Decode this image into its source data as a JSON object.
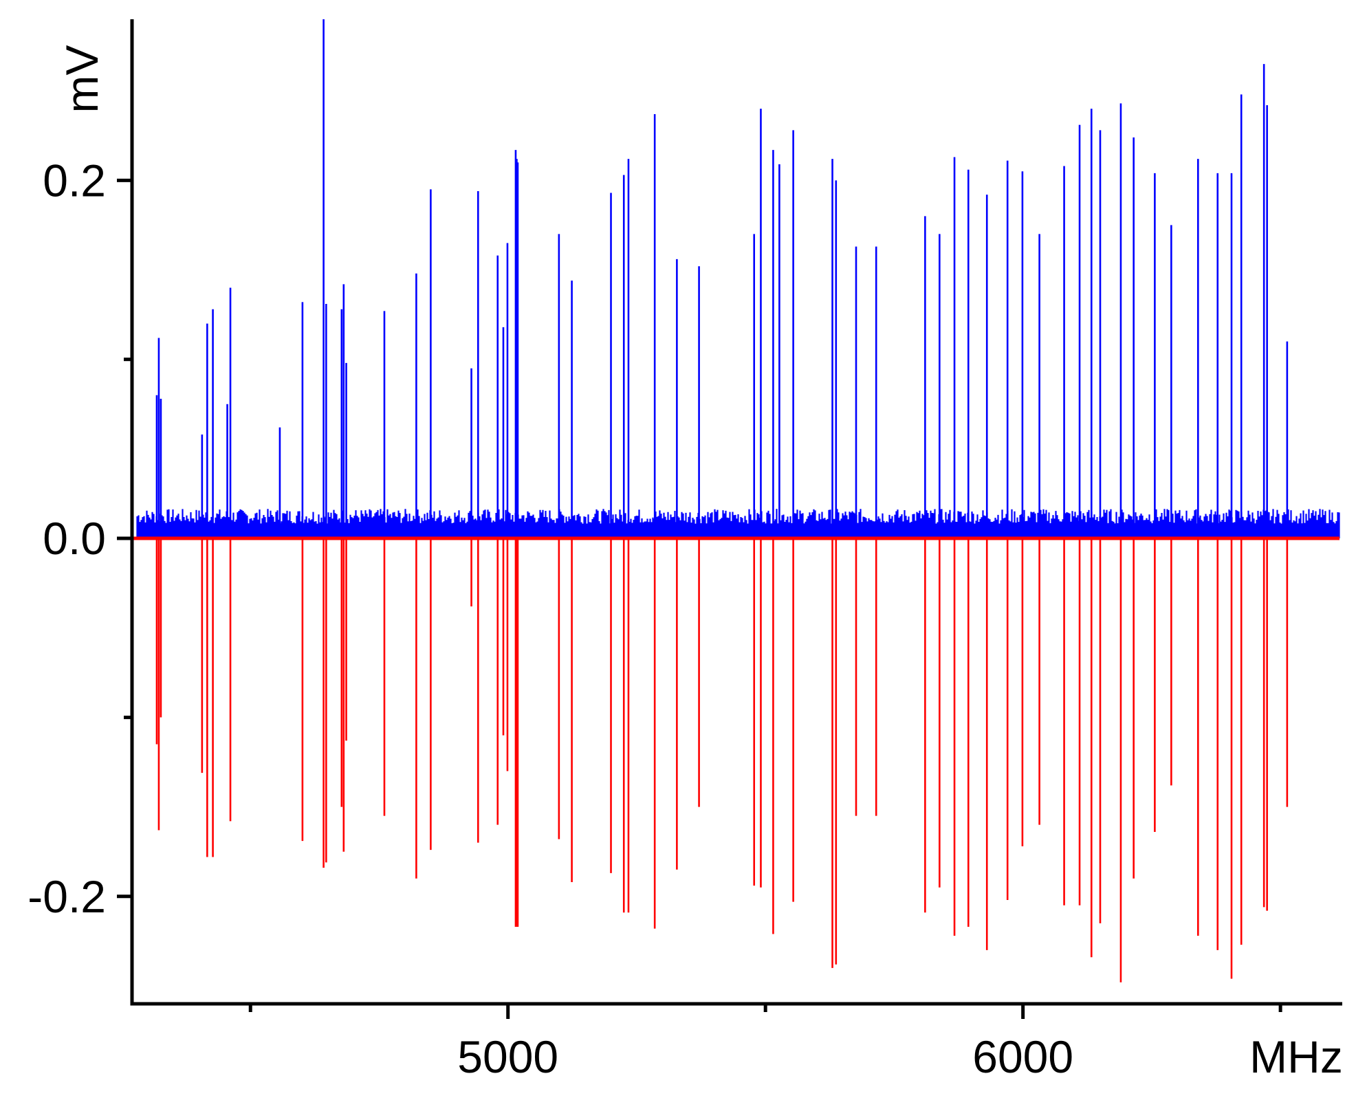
{
  "chart_data": {
    "type": "line",
    "xlabel": "MHz",
    "ylabel": "mV",
    "xlim": [
      4270,
      6620
    ],
    "ylim": [
      -0.26,
      0.29
    ],
    "x_ticks_major": [
      5000,
      6000
    ],
    "x_ticks_minor": [
      4500,
      5500,
      6500
    ],
    "y_ticks_major": [
      -0.2,
      0.0,
      0.2
    ],
    "y_ticks_minor": [
      -0.1,
      0.1
    ],
    "y_tick_labels": [
      "-0.2",
      "0.0",
      "0.2"
    ],
    "x_tick_labels": [
      "5000",
      "6000"
    ],
    "grid": false,
    "noise_floor_mV": 0.015,
    "series": [
      {
        "color": "#0000ff",
        "orientation": "up",
        "peaks": [
          [
            4318,
            0.08
          ],
          [
            4322,
            0.112
          ],
          [
            4326,
            0.078
          ],
          [
            4406,
            0.058
          ],
          [
            4416,
            0.12
          ],
          [
            4427,
            0.128
          ],
          [
            4455,
            0.075
          ],
          [
            4461,
            0.14
          ],
          [
            4557,
            0.062
          ],
          [
            4601,
            0.132
          ],
          [
            4642,
            0.29
          ],
          [
            4647,
            0.131
          ],
          [
            4677,
            0.128
          ],
          [
            4681,
            0.142
          ],
          [
            4686,
            0.098
          ],
          [
            4760,
            0.127
          ],
          [
            4822,
            0.148
          ],
          [
            4850,
            0.195
          ],
          [
            4929,
            0.095
          ],
          [
            4942,
            0.194
          ],
          [
            4980,
            0.158
          ],
          [
            4991,
            0.118
          ],
          [
            4999,
            0.165
          ],
          [
            5015,
            0.217
          ],
          [
            5017,
            0.212
          ],
          [
            5019,
            0.21
          ],
          [
            5099,
            0.17
          ],
          [
            5124,
            0.144
          ],
          [
            5200,
            0.193
          ],
          [
            5225,
            0.203
          ],
          [
            5234,
            0.212
          ],
          [
            5285,
            0.237
          ],
          [
            5328,
            0.156
          ],
          [
            5371,
            0.152
          ],
          [
            5478,
            0.17
          ],
          [
            5491,
            0.24
          ],
          [
            5515,
            0.217
          ],
          [
            5527,
            0.209
          ],
          [
            5554,
            0.228
          ],
          [
            5630,
            0.212
          ],
          [
            5637,
            0.2
          ],
          [
            5676,
            0.163
          ],
          [
            5715,
            0.163
          ],
          [
            5810,
            0.18
          ],
          [
            5838,
            0.17
          ],
          [
            5867,
            0.213
          ],
          [
            5894,
            0.206
          ],
          [
            5930,
            0.192
          ],
          [
            5970,
            0.211
          ],
          [
            5999,
            0.205
          ],
          [
            6032,
            0.17
          ],
          [
            6080,
            0.208
          ],
          [
            6110,
            0.231
          ],
          [
            6133,
            0.24
          ],
          [
            6150,
            0.228
          ],
          [
            6190,
            0.243
          ],
          [
            6215,
            0.224
          ],
          [
            6256,
            0.204
          ],
          [
            6288,
            0.175
          ],
          [
            6340,
            0.212
          ],
          [
            6378,
            0.204
          ],
          [
            6405,
            0.204
          ],
          [
            6424,
            0.248
          ],
          [
            6468,
            0.265
          ],
          [
            6474,
            0.242
          ],
          [
            6513,
            0.11
          ]
        ]
      },
      {
        "color": "#ff0000",
        "orientation": "down",
        "peaks": [
          [
            4318,
            -0.115
          ],
          [
            4322,
            -0.163
          ],
          [
            4326,
            -0.1
          ],
          [
            4406,
            -0.131
          ],
          [
            4416,
            -0.178
          ],
          [
            4427,
            -0.178
          ],
          [
            4461,
            -0.158
          ],
          [
            4601,
            -0.169
          ],
          [
            4642,
            -0.184
          ],
          [
            4647,
            -0.181
          ],
          [
            4677,
            -0.15
          ],
          [
            4681,
            -0.175
          ],
          [
            4686,
            -0.113
          ],
          [
            4760,
            -0.155
          ],
          [
            4822,
            -0.19
          ],
          [
            4850,
            -0.174
          ],
          [
            4929,
            -0.038
          ],
          [
            4942,
            -0.17
          ],
          [
            4980,
            -0.16
          ],
          [
            4991,
            -0.11
          ],
          [
            4999,
            -0.13
          ],
          [
            5015,
            -0.217
          ],
          [
            5017,
            -0.217
          ],
          [
            5019,
            -0.217
          ],
          [
            5099,
            -0.168
          ],
          [
            5124,
            -0.192
          ],
          [
            5200,
            -0.187
          ],
          [
            5225,
            -0.209
          ],
          [
            5234,
            -0.209
          ],
          [
            5285,
            -0.218
          ],
          [
            5328,
            -0.185
          ],
          [
            5371,
            -0.15
          ],
          [
            5478,
            -0.194
          ],
          [
            5491,
            -0.195
          ],
          [
            5515,
            -0.221
          ],
          [
            5554,
            -0.203
          ],
          [
            5630,
            -0.24
          ],
          [
            5637,
            -0.238
          ],
          [
            5676,
            -0.155
          ],
          [
            5715,
            -0.155
          ],
          [
            5810,
            -0.209
          ],
          [
            5838,
            -0.195
          ],
          [
            5867,
            -0.222
          ],
          [
            5894,
            -0.217
          ],
          [
            5930,
            -0.23
          ],
          [
            5970,
            -0.202
          ],
          [
            5999,
            -0.172
          ],
          [
            6032,
            -0.16
          ],
          [
            6080,
            -0.205
          ],
          [
            6110,
            -0.205
          ],
          [
            6133,
            -0.234
          ],
          [
            6150,
            -0.215
          ],
          [
            6190,
            -0.248
          ],
          [
            6215,
            -0.19
          ],
          [
            6256,
            -0.164
          ],
          [
            6288,
            -0.138
          ],
          [
            6340,
            -0.222
          ],
          [
            6378,
            -0.23
          ],
          [
            6405,
            -0.246
          ],
          [
            6424,
            -0.227
          ],
          [
            6468,
            -0.206
          ],
          [
            6474,
            -0.208
          ],
          [
            6513,
            -0.15
          ]
        ]
      }
    ]
  }
}
